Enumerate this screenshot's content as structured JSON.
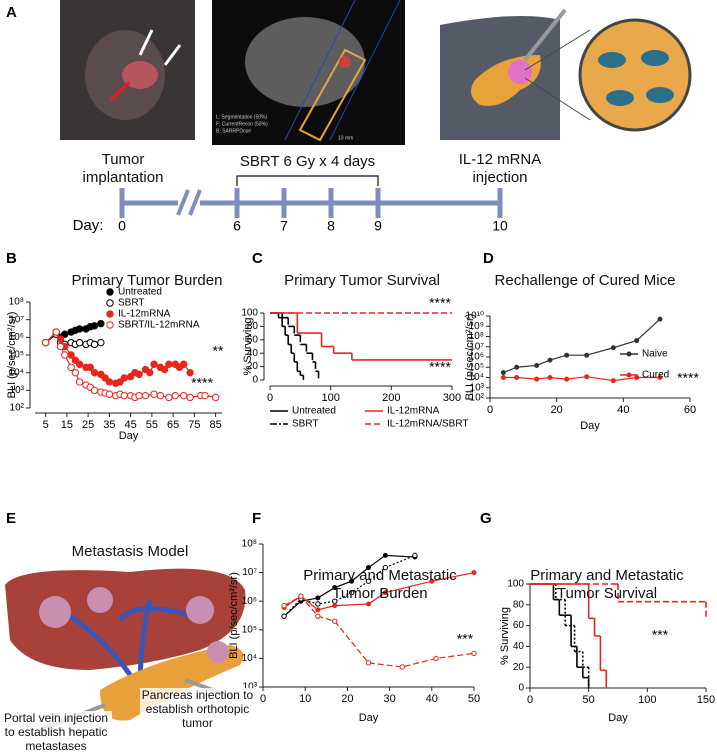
{
  "panel_labels": [
    "A",
    "B",
    "C",
    "D",
    "E",
    "F",
    "G"
  ],
  "timeline": {
    "events": [
      "Tumor implantation",
      "SBRT 6 Gy x 4 days",
      "IL-12 mRNA injection"
    ],
    "day_label": "Day:",
    "days": [
      "0",
      "6",
      "7",
      "8",
      "9",
      "10"
    ]
  },
  "ct_image": {
    "legend": [
      "L: Segmentation (50%)",
      "F: CurrentRecon (50%)",
      "B: SARRPDose"
    ],
    "scale": "10 mm"
  },
  "metastasis_model": {
    "title": "Metastasis Model",
    "labels": [
      "Pancreas injection to establish orthotopic tumor",
      "Portal vein injection to establish hepatic metastases"
    ]
  },
  "chart_data": [
    {
      "type": "line",
      "title": "Primary Tumor Burden",
      "xlabel": "Day",
      "ylabel": "BLI (p/sec/cm²/sr)",
      "yscale": "log",
      "xlim": [
        0,
        88
      ],
      "xticks": [
        5,
        15,
        25,
        35,
        45,
        55,
        65,
        75,
        85
      ],
      "ylim": [
        100,
        100000000
      ],
      "yticks": [
        {
          "value": 100,
          "label": "10²"
        },
        {
          "value": 1000,
          "label": "10³"
        },
        {
          "value": 10000,
          "label": "10⁴"
        },
        {
          "value": 100000,
          "label": "10⁵"
        },
        {
          "value": 1000000,
          "label": "10⁶"
        },
        {
          "value": 10000000,
          "label": "10⁷"
        },
        {
          "value": 100000000,
          "label": "10⁸"
        }
      ],
      "legend": "upper left",
      "series": [
        {
          "name": "Untreated",
          "color": "#000000",
          "marker": "filled",
          "linestyle": "solid",
          "x": [
            5,
            10,
            12,
            14,
            17,
            19,
            21,
            24,
            26,
            28,
            31
          ],
          "values": [
            500000,
            2000000,
            1000000,
            1500000,
            2000000,
            2500000,
            3000000,
            3000000,
            4000000,
            4500000,
            6000000
          ]
        },
        {
          "name": "SBRT",
          "color": "#000000",
          "marker": "open",
          "linestyle": "solid",
          "x": [
            5,
            10,
            12,
            14,
            17,
            19,
            21,
            24,
            26,
            28,
            31
          ],
          "values": [
            500000,
            1500000,
            500000,
            400000,
            500000,
            400000,
            500000,
            400000,
            500000,
            400000,
            500000
          ]
        },
        {
          "name": "IL-12mRNA",
          "color": "#e8261c",
          "marker": "filled",
          "linestyle": "solid",
          "x": [
            5,
            10,
            12,
            14,
            17,
            19,
            21,
            24,
            26,
            28,
            31,
            33,
            35,
            38,
            40,
            42,
            45,
            47,
            49,
            52,
            54,
            56,
            59,
            61,
            63,
            66,
            68,
            70,
            73
          ],
          "values": [
            500000,
            2000000,
            800000,
            300000,
            100000,
            50000,
            30000,
            20000,
            20000,
            10000,
            8000,
            5000,
            3000,
            2500,
            3000,
            5000,
            6000,
            10000,
            8000,
            15000,
            10000,
            30000,
            20000,
            15000,
            30000,
            30000,
            20000,
            30000,
            10000
          ]
        },
        {
          "name": "SBRT/IL-12mRNA",
          "color": "#e8261c",
          "marker": "open",
          "linestyle": "solid",
          "x": [
            5,
            10,
            12,
            14,
            17,
            19,
            21,
            24,
            26,
            28,
            31,
            33,
            35,
            38,
            40,
            42,
            45,
            47,
            49,
            52,
            56,
            59,
            63,
            66,
            70,
            73,
            78,
            80,
            85
          ],
          "values": [
            500000,
            2000000,
            300000,
            100000,
            20000,
            10000,
            3000,
            2000,
            1500,
            1000,
            800,
            700,
            600,
            500,
            600,
            500,
            500,
            400,
            500,
            500,
            600,
            500,
            400,
            500,
            500,
            400,
            500,
            500,
            400
          ]
        }
      ],
      "annotations": [
        "**",
        "****"
      ]
    },
    {
      "type": "line",
      "drawstyle": "steps-post",
      "title": "Primary Tumor Survival",
      "ylabel": "% Surviving",
      "xlim": [
        0,
        300
      ],
      "xticks": [
        0,
        100,
        200,
        300
      ],
      "ylim": [
        0,
        100
      ],
      "yticks": [
        0,
        20,
        40,
        60,
        80,
        100
      ],
      "legend": "below",
      "series": [
        {
          "name": "Untreated",
          "color": "#000000",
          "linestyle": "solid",
          "x": [
            0,
            14,
            20,
            25,
            30,
            35,
            40,
            45,
            50,
            55
          ],
          "values": [
            100,
            93,
            80,
            67,
            53,
            40,
            27,
            13,
            7,
            0
          ]
        },
        {
          "name": "SBRT",
          "color": "#000000",
          "linestyle": "dashdot",
          "x": [
            0,
            20,
            30,
            40,
            50,
            60,
            70,
            75,
            80
          ],
          "values": [
            100,
            93,
            80,
            67,
            53,
            40,
            27,
            13,
            0
          ]
        },
        {
          "name": "IL-12mRNA",
          "color": "#e8261c",
          "linestyle": "solid",
          "x": [
            0,
            45,
            85,
            105,
            135,
            300
          ],
          "values": [
            100,
            70,
            50,
            40,
            30,
            30
          ]
        },
        {
          "name": "IL-12mRNA/SBRT",
          "color": "#e8261c",
          "linestyle": "dashed",
          "x": [
            0,
            300
          ],
          "values": [
            100,
            100
          ]
        }
      ],
      "annotations": [
        "****",
        "****"
      ]
    },
    {
      "type": "line",
      "title": "Rechallenge of Cured Mice",
      "xlabel": "Day",
      "ylabel": "BLI (p/sec/cm²/sr)",
      "yscale": "log",
      "xlim": [
        0,
        60
      ],
      "xticks": [
        0,
        20,
        40,
        60
      ],
      "ylim": [
        100,
        10000000000
      ],
      "yticks": [
        {
          "value": 100,
          "label": "10²"
        },
        {
          "value": 1000,
          "label": "10³"
        },
        {
          "value": 10000,
          "label": "10⁴"
        },
        {
          "value": 100000,
          "label": "10⁵"
        },
        {
          "value": 1000000,
          "label": "10⁶"
        },
        {
          "value": 10000000,
          "label": "10⁷"
        },
        {
          "value": 100000000,
          "label": "10⁸"
        },
        {
          "value": 1000000000,
          "label": "10⁹"
        },
        {
          "value": 10000000000,
          "label": "10¹⁰"
        }
      ],
      "legend": "right",
      "series": [
        {
          "name": "Naive",
          "color": "#333333",
          "marker": "dot",
          "linestyle": "solid",
          "x": [
            4,
            8,
            14,
            18,
            23,
            29,
            37,
            44,
            51
          ],
          "values": [
            30000,
            100000,
            150000,
            500000,
            1500000,
            1500000,
            8000000,
            40000000,
            5000000000
          ]
        },
        {
          "name": "Cured",
          "color": "#e8261c",
          "marker": "dot",
          "linestyle": "solid",
          "x": [
            4,
            8,
            14,
            18,
            23,
            29,
            37,
            44,
            51
          ],
          "values": [
            10000,
            10000,
            7000,
            10000,
            7000,
            12000,
            5000,
            10000,
            10000
          ]
        }
      ],
      "annotations": [
        "****"
      ]
    },
    {
      "type": "line",
      "title": "Primary and Metastatic Tumor Burden",
      "xlabel": "Day",
      "ylabel": "BLI (p/sec/cm²/sr)",
      "yscale": "log",
      "xlim": [
        0,
        50
      ],
      "xticks": [
        0,
        10,
        20,
        30,
        40,
        50
      ],
      "ylim": [
        1000,
        100000000
      ],
      "yticks": [
        {
          "value": 1000,
          "label": "10³"
        },
        {
          "value": 10000,
          "label": "10⁴"
        },
        {
          "value": 100000,
          "label": "10⁵"
        },
        {
          "value": 1000000,
          "label": "10⁶"
        },
        {
          "value": 10000000,
          "label": "10⁷"
        },
        {
          "value": 100000000,
          "label": "10⁸"
        }
      ],
      "series": [
        {
          "color": "#000000",
          "marker": "dot",
          "linestyle": "solid",
          "x": [
            5,
            9,
            13,
            17,
            21,
            25,
            29,
            36
          ],
          "values": [
            300000,
            1000000,
            1300000,
            3000000,
            5000000,
            15000000,
            40000000,
            35000000
          ]
        },
        {
          "color": "#000000",
          "marker": "openSmall",
          "linestyle": "dotted",
          "x": [
            5,
            9,
            13,
            17,
            21,
            25,
            29,
            36
          ],
          "values": [
            300000,
            1200000,
            800000,
            1000000,
            2000000,
            5000000,
            15000000,
            40000000
          ]
        },
        {
          "color": "#e8261c",
          "marker": "dot",
          "linestyle": "solid",
          "x": [
            5,
            9,
            13,
            17,
            25,
            29,
            40,
            50
          ],
          "values": [
            600000,
            1500000,
            500000,
            700000,
            800000,
            2000000,
            5000000,
            10000000
          ]
        },
        {
          "color": "#e8261c",
          "marker": "openSmall",
          "linestyle": "dashed",
          "x": [
            5,
            9,
            13,
            17,
            25,
            33,
            41,
            50
          ],
          "values": [
            700000,
            1500000,
            300000,
            200000,
            7000,
            5000,
            10000,
            15000
          ]
        }
      ],
      "annotations": [
        "***"
      ]
    },
    {
      "type": "line",
      "drawstyle": "steps-post",
      "title": "Primary and Metastatic Tumor Survival",
      "xlabel": "Day",
      "ylabel": "% Surviving",
      "xlim": [
        0,
        150
      ],
      "xticks": [
        0,
        50,
        100,
        150
      ],
      "ylim": [
        0,
        100
      ],
      "yticks": [
        0,
        20,
        40,
        60,
        80,
        100
      ],
      "series": [
        {
          "color": "#000000",
          "linestyle": "solid",
          "x": [
            0,
            20,
            25,
            35,
            40,
            45,
            50
          ],
          "values": [
            100,
            85,
            70,
            40,
            20,
            10,
            0
          ]
        },
        {
          "color": "#000000",
          "linestyle": "dotted",
          "x": [
            0,
            22,
            30,
            38,
            45,
            50
          ],
          "values": [
            100,
            85,
            60,
            35,
            20,
            0
          ]
        },
        {
          "color": "#e8261c",
          "linestyle": "solid",
          "x": [
            0,
            50,
            55,
            60,
            65
          ],
          "values": [
            100,
            67,
            50,
            17,
            0
          ]
        },
        {
          "color": "#e8261c",
          "linestyle": "dashed",
          "x": [
            0,
            70,
            75,
            150
          ],
          "values": [
            100,
            100,
            83,
            67
          ]
        }
      ],
      "annotations": [
        "***"
      ]
    }
  ]
}
